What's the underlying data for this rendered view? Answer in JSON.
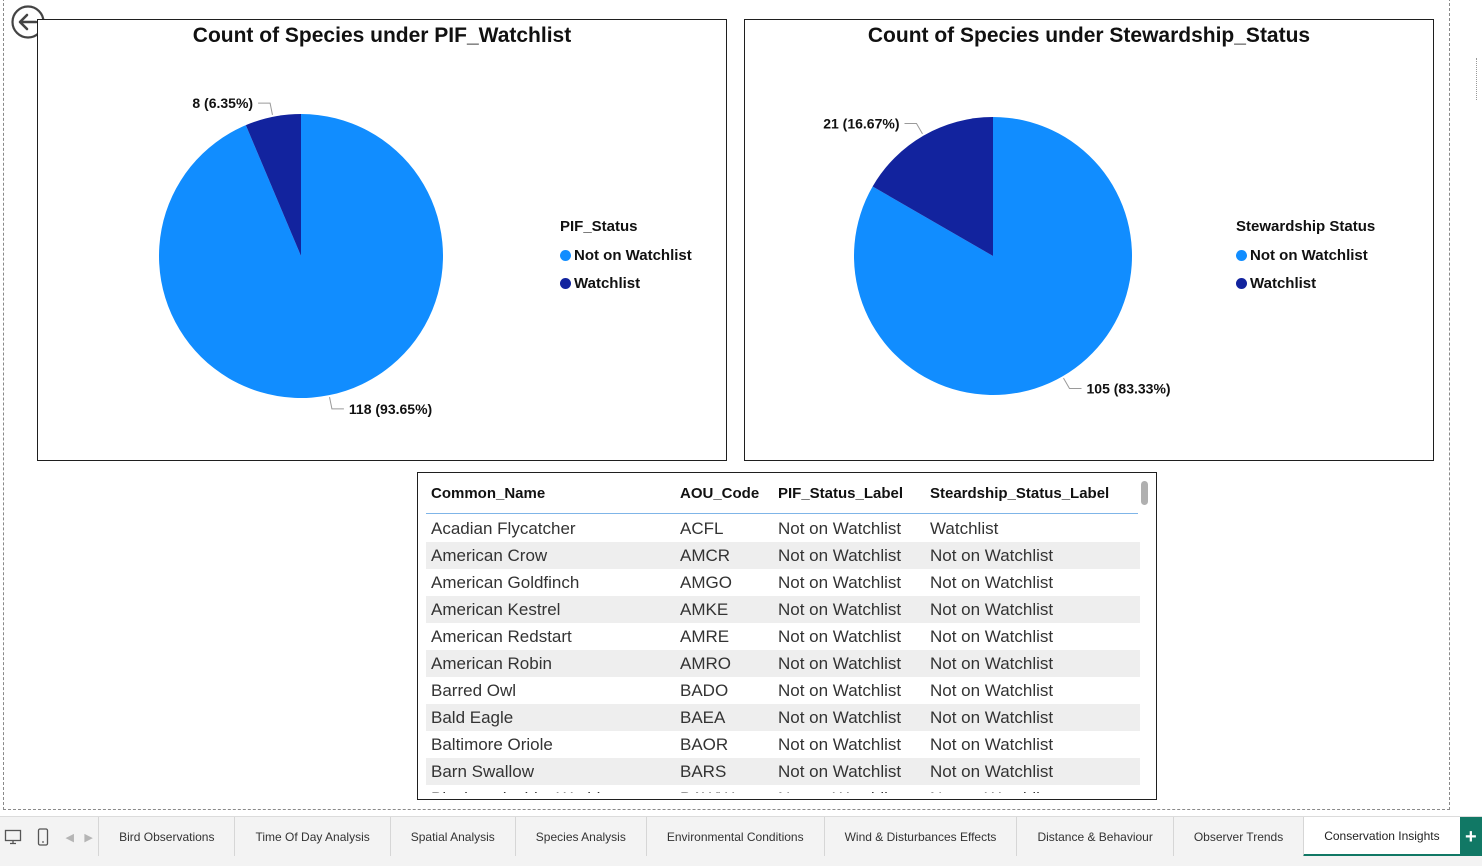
{
  "colors": {
    "not_on_watchlist": "#118DFF",
    "watchlist": "#12239E",
    "tab_accent": "#117865"
  },
  "back_button": {
    "icon": "back-arrow-icon"
  },
  "chart_data": [
    {
      "type": "pie",
      "title": "Count of Species under PIF_Watchlist",
      "legend_title": "PIF_Status",
      "legend_position": "right",
      "categories": [
        "Not on Watchlist",
        "Watchlist"
      ],
      "values": [
        118,
        8
      ],
      "labels": [
        "118 (93.65%)",
        "8 (6.35%)"
      ]
    },
    {
      "type": "pie",
      "title": "Count of Species under Stewardship_Status",
      "legend_title": "Stewardship Status",
      "legend_position": "right",
      "categories": [
        "Not on Watchlist",
        "Watchlist"
      ],
      "values": [
        105,
        21
      ],
      "labels": [
        "105 (83.33%)",
        "21 (16.67%)"
      ]
    }
  ],
  "table": {
    "columns": [
      "Common_Name",
      "AOU_Code",
      "PIF_Status_Label",
      "Steardship_Status_Label"
    ],
    "rows": [
      [
        "Acadian Flycatcher",
        "ACFL",
        "Not on Watchlist",
        "Watchlist"
      ],
      [
        "American Crow",
        "AMCR",
        "Not on Watchlist",
        "Not on Watchlist"
      ],
      [
        "American Goldfinch",
        "AMGO",
        "Not on Watchlist",
        "Not on Watchlist"
      ],
      [
        "American Kestrel",
        "AMKE",
        "Not on Watchlist",
        "Not on Watchlist"
      ],
      [
        "American Redstart",
        "AMRE",
        "Not on Watchlist",
        "Not on Watchlist"
      ],
      [
        "American Robin",
        "AMRO",
        "Not on Watchlist",
        "Not on Watchlist"
      ],
      [
        "Barred Owl",
        "BADO",
        "Not on Watchlist",
        "Not on Watchlist"
      ],
      [
        "Bald Eagle",
        "BAEA",
        "Not on Watchlist",
        "Not on Watchlist"
      ],
      [
        "Baltimore Oriole",
        "BAOR",
        "Not on Watchlist",
        "Not on Watchlist"
      ],
      [
        "Barn Swallow",
        "BARS",
        "Not on Watchlist",
        "Not on Watchlist"
      ],
      [
        "Black-and-white Warbler",
        "BAWW",
        "Not on Watchlist",
        "Not on Watchlist"
      ]
    ]
  },
  "tabs": [
    "Bird Observations",
    "Time Of Day Analysis",
    "Spatial Analysis",
    "Species Analysis",
    "Environmental Conditions",
    "Wind & Disturbances Effects",
    "Distance & Behaviour",
    "Observer Trends",
    "Conservation Insights"
  ],
  "active_tab": "Conservation Insights",
  "add_tab_label": "+"
}
